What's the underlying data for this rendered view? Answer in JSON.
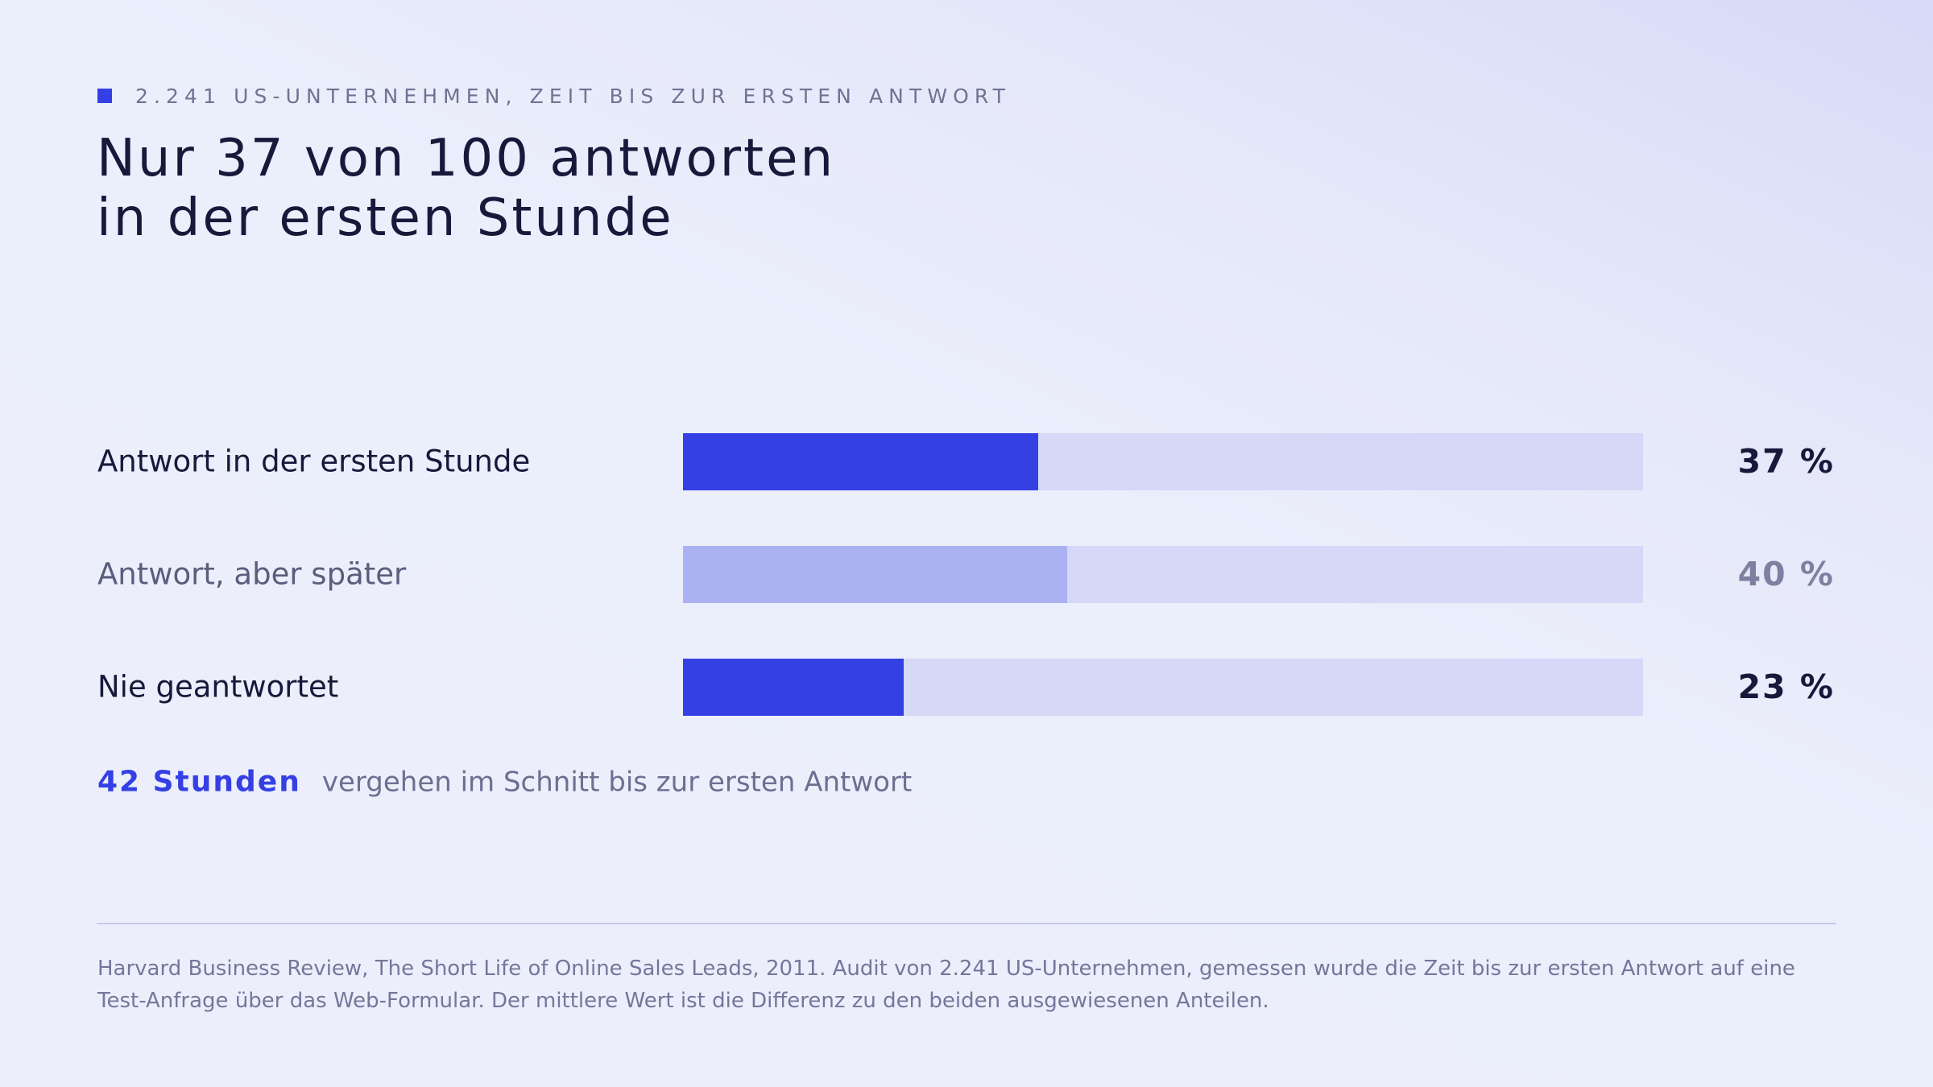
{
  "eyebrow": "2.241 US-UNTERNEHMEN, ZEIT BIS ZUR ERSTEN ANTWORT",
  "title": [
    "Nur 37 von 100 antworten",
    "in der ersten Stunde"
  ],
  "chart_data": {
    "type": "bar",
    "orientation": "horizontal",
    "categories": [
      "Antwort in der ersten Stunde",
      "Antwort, aber später",
      "Nie geantwortet"
    ],
    "values": [
      37,
      40,
      23
    ],
    "value_labels": [
      "37 %",
      "40 %",
      "23 %"
    ],
    "xlim": [
      0,
      100
    ],
    "unit": "%",
    "colors": [
      "#3440e4",
      "#abb2f2",
      "#3440e4"
    ],
    "track_color": "#d5d8f6",
    "label_colors": [
      "#161a3a",
      "#5a5e7c",
      "#161a3a"
    ],
    "pct_colors": [
      "#161a3a",
      "#7d80a0",
      "#161a3a"
    ]
  },
  "note": {
    "highlight": "42 Stunden",
    "text": "vergehen im Schnitt bis zur ersten Antwort"
  },
  "source": "Harvard Business Review, The Short Life of Online Sales Leads, 2011. Audit von 2.241 US-Unternehmen, gemessen wurde die Zeit bis zur ersten Antwort auf eine Test-Anfrage über das Web-Formular. Der mittlere Wert ist die Differenz zu den beiden ausgewiesenen Anteilen."
}
